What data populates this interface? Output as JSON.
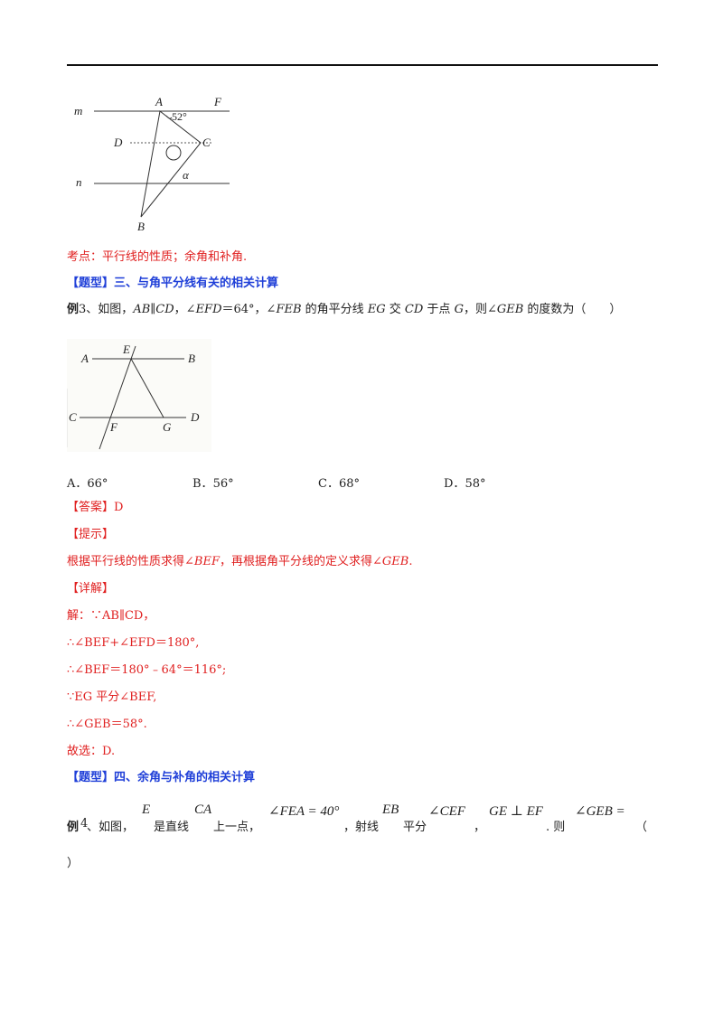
{
  "figure1": {
    "labels": {
      "m": "m",
      "n": "n",
      "A": "A",
      "F": "F",
      "D": "D",
      "C": "C",
      "B": "B",
      "angle": "52°",
      "alpha": "α"
    }
  },
  "kaodian": "考点：平行线的性质；余角和补角.",
  "section3_title": "【题型】三、与角平分线有关的相关计算",
  "example3": {
    "prefix": "例",
    "number": "3",
    "text_a": "、如图，",
    "ab": "AB",
    "par": "∥",
    "cd": "CD",
    "text_b": "，∠",
    "efd": "EFD",
    "text_c": "＝64°，∠",
    "feb": "FEB",
    "text_d": " 的角平分线 ",
    "eg": "EG",
    "text_e": " 交 ",
    "cd2": "CD",
    "text_f": " 于点 ",
    "g": "G",
    "text_g": "，则∠",
    "geb": "GEB",
    "text_h": " 的度数为（　　）"
  },
  "figure2": {
    "labels": {
      "A": "A",
      "E": "E",
      "B": "B",
      "C": "C",
      "F": "F",
      "G": "G",
      "D": "D"
    }
  },
  "options": [
    {
      "letter": "A．",
      "value": "66°"
    },
    {
      "letter": "B．",
      "value": "56°"
    },
    {
      "letter": "C．",
      "value": "68°"
    },
    {
      "letter": "D．",
      "value": "58°"
    }
  ],
  "answer_label": "【答案】",
  "answer_value": "D",
  "hint_label": "【提示】",
  "hint_text": {
    "a": "根据平行线的性质求得∠",
    "b": "BEF",
    "c": "，再根据角平分线的定义求得∠",
    "d": "GEB",
    "e": "."
  },
  "detail_label": "【详解】",
  "solution": [
    "解：∵AB∥CD，",
    "∴∠BEF+∠EFD＝180°,",
    "∴∠BEF＝180°﹣64°＝116°;",
    "∵EG 平分∠BEF,",
    "∴∠GEB＝58°.",
    "故选：D."
  ],
  "section4_title": "【题型】四、余角与补角的相关计算",
  "example4": {
    "prefix": "例",
    "number": "4",
    "t1": "、如图，",
    "e": "E",
    "t2": "是直线",
    "ca": "CA",
    "t3": "上一点，",
    "angle": "∠FEA = 40°",
    "t4": "，射线",
    "eb": "EB",
    "t5": "平分",
    "cef": "∠CEF",
    "t6": "，",
    "perp": "GE ⊥ EF",
    "t7": ". 则",
    "geb": "∠GEB =",
    "t8": "（",
    "t9": "）"
  }
}
